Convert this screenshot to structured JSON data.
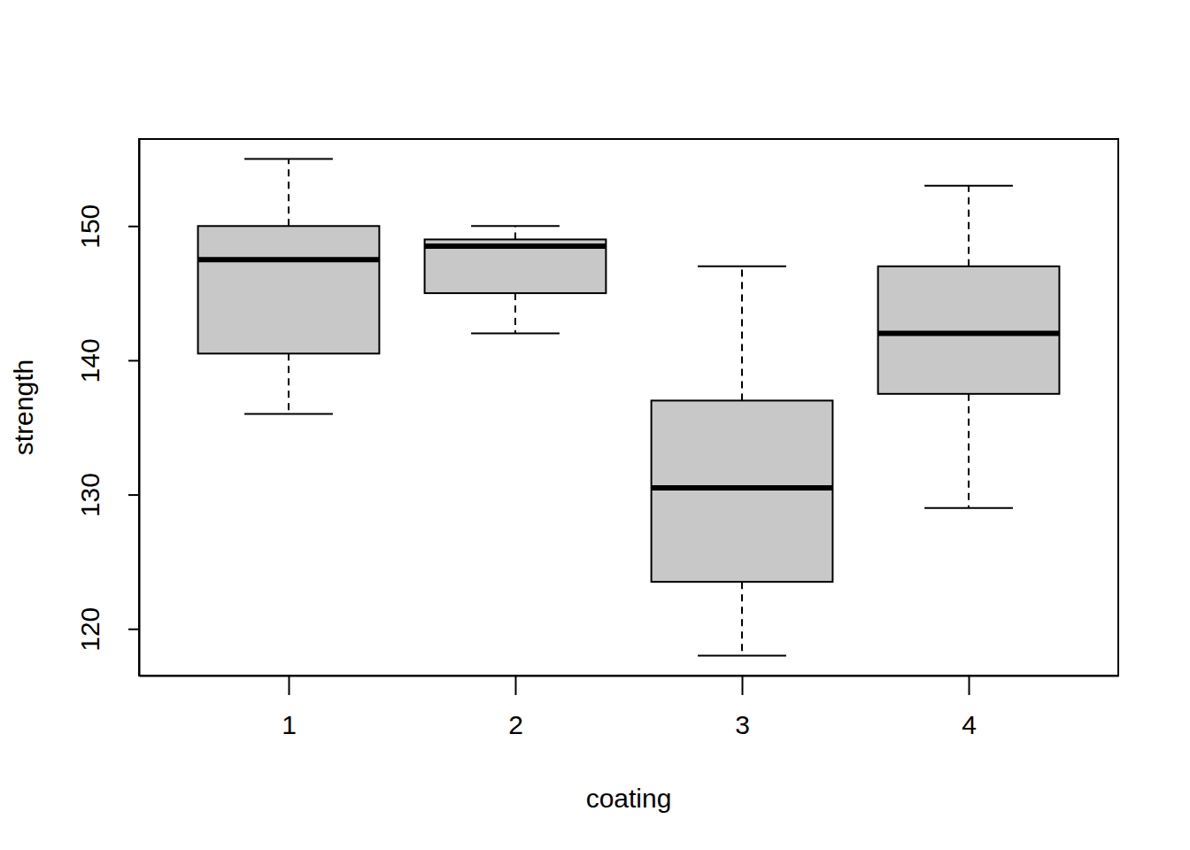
{
  "chart_data": {
    "type": "boxplot",
    "x_label": "coating",
    "y_label": "strength",
    "categories": [
      "1",
      "2",
      "3",
      "4"
    ],
    "values": [
      {
        "low": 136,
        "q1": 140.5,
        "median": 147.5,
        "q3": 150,
        "high": 155
      },
      {
        "low": 142,
        "q1": 145,
        "median": 148.5,
        "q3": 149,
        "high": 150
      },
      {
        "low": 118,
        "q1": 123.5,
        "median": 130.5,
        "q3": 137,
        "high": 147
      },
      {
        "low": 129,
        "q1": 137.5,
        "median": 142,
        "q3": 147,
        "high": 153
      }
    ],
    "color": "#c8c8c8",
    "ylim": [
      116.52,
      156.48
    ],
    "yticks": [
      120,
      130,
      140,
      150
    ]
  }
}
